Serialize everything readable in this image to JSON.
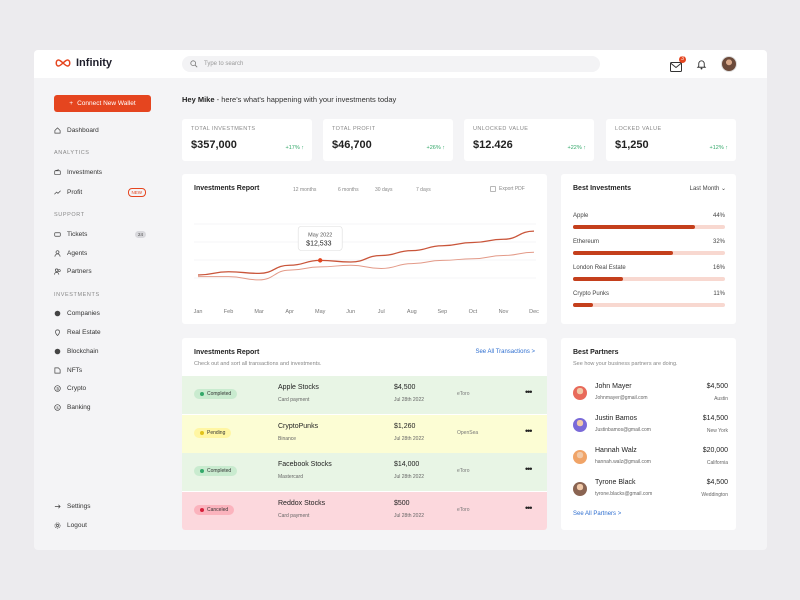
{
  "app": {
    "name": "Infinity"
  },
  "search": {
    "placeholder": "Type to search"
  },
  "topbar": {
    "mail_count": "3"
  },
  "sidebar": {
    "connect_label": "Connect New Wallet",
    "dashboard": "Dashboard",
    "sections": {
      "analytics": "ANALYTICS",
      "support": "SUPPORT",
      "investments": "INVESTMENTS"
    },
    "analytics_items": [
      {
        "label": "Investments",
        "icon": "wallet-icon"
      },
      {
        "label": "Profit",
        "icon": "trend-icon",
        "badge": "NEW"
      }
    ],
    "support_items": [
      {
        "label": "Tickets",
        "icon": "ticket-icon",
        "count": "24"
      },
      {
        "label": "Agents",
        "icon": "user-icon"
      },
      {
        "label": "Partners",
        "icon": "users-icon"
      }
    ],
    "investment_items": [
      {
        "label": "Companies",
        "icon": "globe-icon"
      },
      {
        "label": "Real Estate",
        "icon": "pin-icon"
      },
      {
        "label": "Blockchain",
        "icon": "globe-icon"
      },
      {
        "label": "NFTs",
        "icon": "nft-icon"
      },
      {
        "label": "Crypto",
        "icon": "crypto-icon"
      },
      {
        "label": "Banking",
        "icon": "bank-icon"
      }
    ],
    "settings": "Settings",
    "logout": "Logout"
  },
  "greeting": {
    "name": "Hey Mike",
    "text": " - here's what's happening with your investments today"
  },
  "stats": [
    {
      "label": "TOTAL INVESTMENTS",
      "value": "$357,000",
      "change": "+17% ↑"
    },
    {
      "label": "TOTAL PROFIT",
      "value": "$46,700",
      "change": "+26% ↑"
    },
    {
      "label": "UNLOCKED VALUE",
      "value": "$12.426",
      "change": "+22% ↑"
    },
    {
      "label": "LOCKED VALUE",
      "value": "$1,250",
      "change": "+12% ↑"
    }
  ],
  "investments_chart": {
    "title": "Investments Report",
    "ranges": [
      "12 months",
      "6 months",
      "30 days",
      "7 days"
    ],
    "export_label": "Export PDF",
    "tooltip": {
      "label": "May 2022",
      "value": "$12,533"
    },
    "colors": {
      "primary": "#c9553a",
      "secondary": "#e39a88"
    }
  },
  "chart_data": {
    "type": "line",
    "x": [
      "Jan",
      "Feb",
      "Mar",
      "Apr",
      "May",
      "Jun",
      "Jul",
      "Aug",
      "Sep",
      "Oct",
      "Nov",
      "Dec"
    ],
    "series": [
      {
        "values": [
          4,
          5,
          4.5,
          7,
          8.5,
          8,
          10,
          11.5,
          13,
          14,
          15,
          17.5
        ]
      },
      {
        "values": [
          3.5,
          3.5,
          2.5,
          5.5,
          6.5,
          7,
          6,
          7.5,
          8.5,
          9,
          10,
          11
        ]
      }
    ],
    "ylim": [
      0,
      24
    ]
  },
  "best_investments": {
    "title": "Best Investments",
    "period": "Last Month ⌄",
    "items": [
      {
        "name": "Apple",
        "pct_label": "44%",
        "fill": 0.8
      },
      {
        "name": "Ethereum",
        "pct_label": "32%",
        "fill": 0.66
      },
      {
        "name": "London Real Estate",
        "pct_label": "16%",
        "fill": 0.33
      },
      {
        "name": "Crypto Punks",
        "pct_label": "11%",
        "fill": 0.13
      }
    ]
  },
  "report": {
    "title": "Investments Report",
    "subtitle": "Check out and sort all transactions and investments.",
    "see_all": "See All Transactions  >",
    "rows": [
      {
        "status": "Completed",
        "status_dot": "#34a86a",
        "status_bg": "#c9ebcf",
        "bg": "#e8f5e5",
        "title": "Apple Stocks",
        "sub": "Card payment",
        "amount": "$4,500",
        "date": "Jul 28th 2022",
        "exchange": "eToro"
      },
      {
        "status": "Pending",
        "status_dot": "#e1c21a",
        "status_bg": "#fff6a3",
        "bg": "#fcfdd4",
        "title": "CryptoPunks",
        "sub": "Binance",
        "amount": "$1,260",
        "date": "Jul 28th 2022",
        "exchange": "OpenSea"
      },
      {
        "status": "Completed",
        "status_dot": "#34a86a",
        "status_bg": "#c9ebcf",
        "bg": "#e8f5e5",
        "title": "Facebook Stocks",
        "sub": "Mastercard",
        "amount": "$14,000",
        "date": "Jul 28th 2022",
        "exchange": "eToro"
      },
      {
        "status": "Canceled",
        "status_dot": "#d6203a",
        "status_bg": "#fbb3bd",
        "bg": "#fcd8dd",
        "title": "Reddox Stocks",
        "sub": "Card payment",
        "amount": "$500",
        "date": "Jul 28th 2022",
        "exchange": "eToro"
      }
    ],
    "more_label": "•••"
  },
  "partners": {
    "title": "Best Partners",
    "subtitle": "See how your business partners are doing.",
    "see_all": "See All Partners >",
    "items": [
      {
        "name": "John Mayer",
        "email": "Johnmayer@gmail.com",
        "amount": "$4,500",
        "city": "Austin",
        "color": "#e86a5a"
      },
      {
        "name": "Justin Bamos",
        "email": "Justinbamos@gmail.com",
        "amount": "$14,500",
        "city": "New York",
        "color": "#7a6ad8"
      },
      {
        "name": "Hannah Walz",
        "email": "hannah.walz@gmail.com",
        "amount": "$20,000",
        "city": "California",
        "color": "#f0a468"
      },
      {
        "name": "Tyrone Black",
        "email": "tyrone.blacks@gmail.com",
        "amount": "$4,500",
        "city": "Weddington",
        "color": "#8a6452"
      }
    ]
  }
}
